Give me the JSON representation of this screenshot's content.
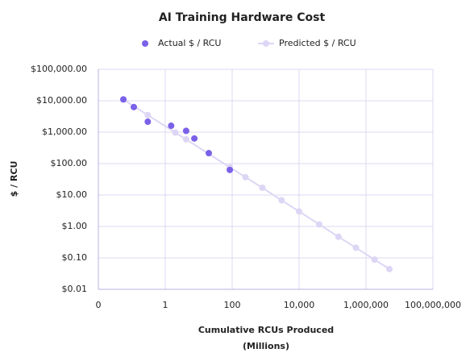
{
  "chart_data": {
    "type": "scatter",
    "title": "AI Training Hardware Cost",
    "xlabel": [
      "Cumulative RCUs Produced",
      "(Millions)"
    ],
    "ylabel": "$ / RCU",
    "xscale": "log",
    "yscale": "log",
    "grid": true,
    "legend": "top",
    "xlim": [
      0.01,
      100000000
    ],
    "ylim": [
      0.01,
      100000
    ],
    "xticks": [
      {
        "value": 0.01,
        "label": "0"
      },
      1,
      100,
      {
        "value": 10000,
        "label": "10,000"
      },
      {
        "value": 1000000,
        "label": "1,000,000"
      },
      {
        "value": 100000000,
        "label": "100,000,000"
      }
    ],
    "yticks": [
      {
        "value": 100000,
        "label": "$100,000.00"
      },
      {
        "value": 10000,
        "label": "$10,000.00"
      },
      {
        "value": 1000,
        "label": "$1,000.00"
      },
      {
        "value": 100,
        "label": "$100.00"
      },
      {
        "value": 10,
        "label": "$10.00"
      },
      {
        "value": 1,
        "label": "$1.00"
      },
      {
        "value": 0.1,
        "label": "$0.10"
      },
      {
        "value": 0.01,
        "label": "$0.01"
      }
    ],
    "series": [
      {
        "name": "Predicted $ / RCU",
        "color": "#ddd6f5",
        "line": true,
        "x": [
          0.056,
          0.3,
          2,
          4.2,
          85,
          250,
          800,
          3000,
          10000,
          40000,
          150000,
          500000,
          1800000,
          5000000
        ],
        "values": [
          11000,
          3500,
          970,
          590,
          76,
          37,
          17,
          6.8,
          3.0,
          1.16,
          0.47,
          0.21,
          0.088,
          0.044
        ]
      },
      {
        "name": "Actual $ / RCU",
        "color": "#7b61e8",
        "line": false,
        "x": [
          0.056,
          0.115,
          0.3,
          1.5,
          4.2,
          7.4,
          20,
          85
        ],
        "values": [
          11000,
          6300,
          2150,
          1600,
          1100,
          630,
          215,
          63
        ]
      }
    ]
  }
}
